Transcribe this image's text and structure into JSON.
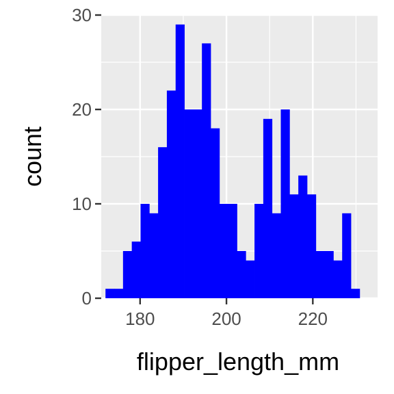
{
  "chart_data": {
    "type": "bar",
    "subtype": "histogram",
    "xlabel": "flipper_length_mm",
    "ylabel": "count",
    "xlim": [
      171,
      235
    ],
    "ylim": [
      0,
      30
    ],
    "x_ticks": [
      180,
      200,
      220
    ],
    "y_ticks": [
      0,
      10,
      20,
      30
    ],
    "bin_width": 2.03,
    "bin_start": 171.985,
    "counts": [
      1,
      1,
      5,
      6,
      10,
      9,
      16,
      22,
      29,
      20,
      20,
      27,
      18,
      10,
      10,
      5,
      4,
      10,
      19,
      9,
      20,
      11,
      13,
      11,
      5,
      5,
      4,
      9,
      1
    ],
    "grid": true,
    "legend": "none",
    "colors": {
      "bar": "#0000ff",
      "panel": "#ebebeb",
      "grid": "#ffffff",
      "tick": "#333333"
    }
  }
}
